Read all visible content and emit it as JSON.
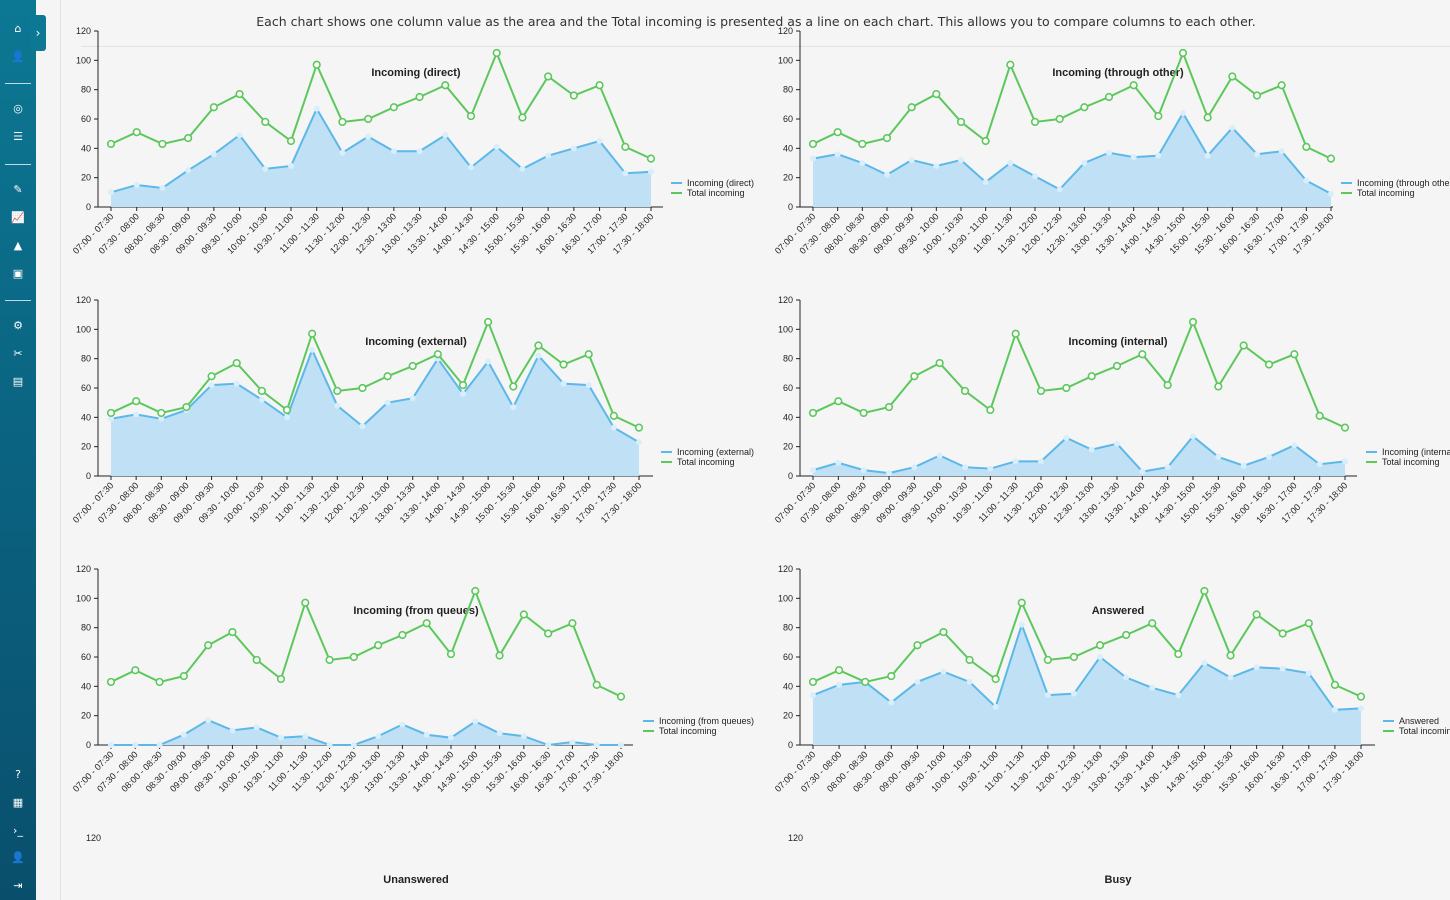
{
  "intro_text": "Each chart shows one column value as the area and the Total incoming is presented as a line on each chart. This allows you to compare columns to each other.",
  "colors": {
    "area_fill": "#bfe0f5",
    "area_line": "#5cb8e8",
    "total_line": "#5cc85c",
    "sidebar": "#0c7893"
  },
  "sidebar": {
    "toggle_icon": "›",
    "icons": [
      {
        "name": "home-icon",
        "glyph": "⌂"
      },
      {
        "name": "user-icon",
        "glyph": "👤"
      },
      {
        "name": "dashboard-icon",
        "glyph": "◎"
      },
      {
        "name": "list-icon",
        "glyph": "☰"
      },
      {
        "name": "chart-edit-icon",
        "glyph": "✎"
      },
      {
        "name": "line-chart-icon",
        "glyph": "📈"
      },
      {
        "name": "area-chart-icon",
        "glyph": "▲"
      },
      {
        "name": "reports-icon",
        "glyph": "▣"
      },
      {
        "name": "settings-icon",
        "glyph": "⚙"
      },
      {
        "name": "tools-icon",
        "glyph": "✂"
      },
      {
        "name": "document-icon",
        "glyph": "▤"
      },
      {
        "name": "help-icon",
        "glyph": "?"
      },
      {
        "name": "calculator-icon",
        "glyph": "▦"
      },
      {
        "name": "terminal-icon",
        "glyph": "›_"
      },
      {
        "name": "user-settings-icon",
        "glyph": "👤"
      },
      {
        "name": "logout-icon",
        "glyph": "⇥"
      }
    ]
  },
  "chart_data": [
    {
      "type": "area+line",
      "title": "Incoming (direct)",
      "categories": [
        "07:00 - 07:30",
        "07:30 - 08:00",
        "08:00 - 08:30",
        "08:30 - 09:00",
        "09:00 - 09:30",
        "09:30 - 10:00",
        "10:00 - 10:30",
        "10:30 - 11:00",
        "11:00 - 11:30",
        "11:30 - 12:00",
        "12:00 - 12:30",
        "12:30 - 13:00",
        "13:00 - 13:30",
        "13:30 - 14:00",
        "14:00 - 14:30",
        "14:30 - 15:00",
        "15:00 - 15:30",
        "15:30 - 16:00",
        "16:00 - 16:30",
        "16:30 - 17:00",
        "17:00 - 17:30",
        "17:30 - 18:00"
      ],
      "ylim": [
        0,
        120
      ],
      "yticks": [
        0,
        20,
        40,
        60,
        80,
        100,
        120
      ],
      "series": [
        {
          "name": "Incoming (direct)",
          "kind": "area",
          "values": [
            10,
            15,
            13,
            25,
            36,
            49,
            26,
            28,
            67,
            37,
            48,
            38,
            38,
            49,
            27,
            41,
            26,
            35,
            40,
            45,
            23,
            24
          ]
        },
        {
          "name": "Total incoming",
          "kind": "line",
          "values": [
            43,
            51,
            43,
            47,
            68,
            77,
            58,
            45,
            97,
            58,
            60,
            68,
            75,
            83,
            62,
            105,
            61,
            89,
            76,
            83,
            41,
            33
          ]
        }
      ]
    },
    {
      "type": "area+line",
      "title": "Incoming (through other)",
      "categories": [
        "07:00 - 07:30",
        "07:30 - 08:00",
        "08:00 - 08:30",
        "08:30 - 09:00",
        "09:00 - 09:30",
        "09:30 - 10:00",
        "10:00 - 10:30",
        "10:30 - 11:00",
        "11:00 - 11:30",
        "11:30 - 12:00",
        "12:00 - 12:30",
        "12:30 - 13:00",
        "13:00 - 13:30",
        "13:30 - 14:00",
        "14:00 - 14:30",
        "14:30 - 15:00",
        "15:00 - 15:30",
        "15:30 - 16:00",
        "16:00 - 16:30",
        "16:30 - 17:00",
        "17:00 - 17:30",
        "17:30 - 18:00"
      ],
      "ylim": [
        0,
        120
      ],
      "yticks": [
        0,
        20,
        40,
        60,
        80,
        100,
        120
      ],
      "series": [
        {
          "name": "Incoming (through other)",
          "kind": "area",
          "values": [
            33,
            36,
            30,
            22,
            32,
            28,
            32,
            17,
            30,
            21,
            12,
            30,
            37,
            34,
            35,
            64,
            35,
            54,
            36,
            38,
            18,
            9
          ]
        },
        {
          "name": "Total incoming",
          "kind": "line",
          "values": [
            43,
            51,
            43,
            47,
            68,
            77,
            58,
            45,
            97,
            58,
            60,
            68,
            75,
            83,
            62,
            105,
            61,
            89,
            76,
            83,
            41,
            33
          ]
        }
      ]
    },
    {
      "type": "area+line",
      "title": "Incoming (external)",
      "categories": [
        "07:00 - 07:30",
        "07:30 - 08:00",
        "08:00 - 08:30",
        "08:30 - 09:00",
        "09:00 - 09:30",
        "09:30 - 10:00",
        "10:00 - 10:30",
        "10:30 - 11:00",
        "11:00 - 11:30",
        "11:30 - 12:00",
        "12:00 - 12:30",
        "12:30 - 13:00",
        "13:00 - 13:30",
        "13:30 - 14:00",
        "14:00 - 14:30",
        "14:30 - 15:00",
        "15:00 - 15:30",
        "15:30 - 16:00",
        "16:00 - 16:30",
        "16:30 - 17:00",
        "17:00 - 17:30",
        "17:30 - 18:00"
      ],
      "ylim": [
        0,
        120
      ],
      "yticks": [
        0,
        20,
        40,
        60,
        80,
        100,
        120
      ],
      "series": [
        {
          "name": "Incoming (external)",
          "kind": "area",
          "values": [
            39,
            42,
            39,
            45,
            62,
            63,
            52,
            40,
            86,
            48,
            34,
            50,
            53,
            80,
            56,
            78,
            47,
            82,
            63,
            62,
            33,
            23
          ]
        },
        {
          "name": "Total incoming",
          "kind": "line",
          "values": [
            43,
            51,
            43,
            47,
            68,
            77,
            58,
            45,
            97,
            58,
            60,
            68,
            75,
            83,
            62,
            105,
            61,
            89,
            76,
            83,
            41,
            33
          ]
        }
      ]
    },
    {
      "type": "area+line",
      "title": "Incoming (internal)",
      "categories": [
        "07:00 - 07:30",
        "07:30 - 08:00",
        "08:00 - 08:30",
        "08:30 - 09:00",
        "09:00 - 09:30",
        "09:30 - 10:00",
        "10:00 - 10:30",
        "10:30 - 11:00",
        "11:00 - 11:30",
        "11:30 - 12:00",
        "12:00 - 12:30",
        "12:30 - 13:00",
        "13:00 - 13:30",
        "13:30 - 14:00",
        "14:00 - 14:30",
        "14:30 - 15:00",
        "15:00 - 15:30",
        "15:30 - 16:00",
        "16:00 - 16:30",
        "16:30 - 17:00",
        "17:00 - 17:30",
        "17:30 - 18:00"
      ],
      "ylim": [
        0,
        120
      ],
      "yticks": [
        0,
        20,
        40,
        60,
        80,
        100,
        120
      ],
      "series": [
        {
          "name": "Incoming (internal)",
          "kind": "area",
          "values": [
            4,
            9,
            4,
            2,
            6,
            14,
            6,
            5,
            10,
            10,
            26,
            18,
            22,
            3,
            6,
            27,
            13,
            7,
            13,
            21,
            8,
            10
          ]
        },
        {
          "name": "Total incoming",
          "kind": "line",
          "values": [
            43,
            51,
            43,
            47,
            68,
            77,
            58,
            45,
            97,
            58,
            60,
            68,
            75,
            83,
            62,
            105,
            61,
            89,
            76,
            83,
            41,
            33
          ]
        }
      ]
    },
    {
      "type": "area+line",
      "title": "Incoming (from queues)",
      "categories": [
        "07:00 - 07:30",
        "07:30 - 08:00",
        "08:00 - 08:30",
        "08:30 - 09:00",
        "09:00 - 09:30",
        "09:30 - 10:00",
        "10:00 - 10:30",
        "10:30 - 11:00",
        "11:00 - 11:30",
        "11:30 - 12:00",
        "12:00 - 12:30",
        "12:30 - 13:00",
        "13:00 - 13:30",
        "13:30 - 14:00",
        "14:00 - 14:30",
        "14:30 - 15:00",
        "15:00 - 15:30",
        "15:30 - 16:00",
        "16:00 - 16:30",
        "16:30 - 17:00",
        "17:00 - 17:30",
        "17:30 - 18:00"
      ],
      "ylim": [
        0,
        120
      ],
      "yticks": [
        0,
        20,
        40,
        60,
        80,
        100,
        120
      ],
      "series": [
        {
          "name": "Incoming (from queues)",
          "kind": "area",
          "values": [
            0,
            0,
            0,
            7,
            17,
            10,
            12,
            5,
            6,
            0,
            0,
            6,
            14,
            7,
            5,
            16,
            8,
            6,
            0,
            2,
            0,
            0
          ]
        },
        {
          "name": "Total incoming",
          "kind": "line",
          "values": [
            43,
            51,
            43,
            47,
            68,
            77,
            58,
            45,
            97,
            58,
            60,
            68,
            75,
            83,
            62,
            105,
            61,
            89,
            76,
            83,
            41,
            33
          ]
        }
      ]
    },
    {
      "type": "area+line",
      "title": "Answered",
      "categories": [
        "07:00 - 07:30",
        "07:30 - 08:00",
        "08:00 - 08:30",
        "08:30 - 09:00",
        "09:00 - 09:30",
        "09:30 - 10:00",
        "10:00 - 10:30",
        "10:30 - 11:00",
        "11:00 - 11:30",
        "11:30 - 12:00",
        "12:00 - 12:30",
        "12:30 - 13:00",
        "13:00 - 13:30",
        "13:30 - 14:00",
        "14:00 - 14:30",
        "14:30 - 15:00",
        "15:00 - 15:30",
        "15:30 - 16:00",
        "16:00 - 16:30",
        "16:30 - 17:00",
        "17:00 - 17:30",
        "17:30 - 18:00"
      ],
      "ylim": [
        0,
        120
      ],
      "yticks": [
        0,
        20,
        40,
        60,
        80,
        100,
        120
      ],
      "series": [
        {
          "name": "Answered",
          "kind": "area",
          "values": [
            34,
            41,
            43,
            29,
            43,
            50,
            43,
            26,
            82,
            34,
            35,
            60,
            46,
            39,
            34,
            56,
            46,
            53,
            52,
            49,
            24,
            25
          ]
        },
        {
          "name": "Total incoming",
          "kind": "line",
          "values": [
            43,
            51,
            43,
            47,
            68,
            77,
            58,
            45,
            97,
            58,
            60,
            68,
            75,
            83,
            62,
            105,
            61,
            89,
            76,
            83,
            41,
            33
          ]
        }
      ]
    },
    {
      "type": "area+line",
      "title": "Unanswered",
      "yticks": [
        120
      ],
      "series": []
    },
    {
      "type": "area+line",
      "title": "Busy",
      "yticks": [
        120
      ],
      "series": []
    }
  ]
}
